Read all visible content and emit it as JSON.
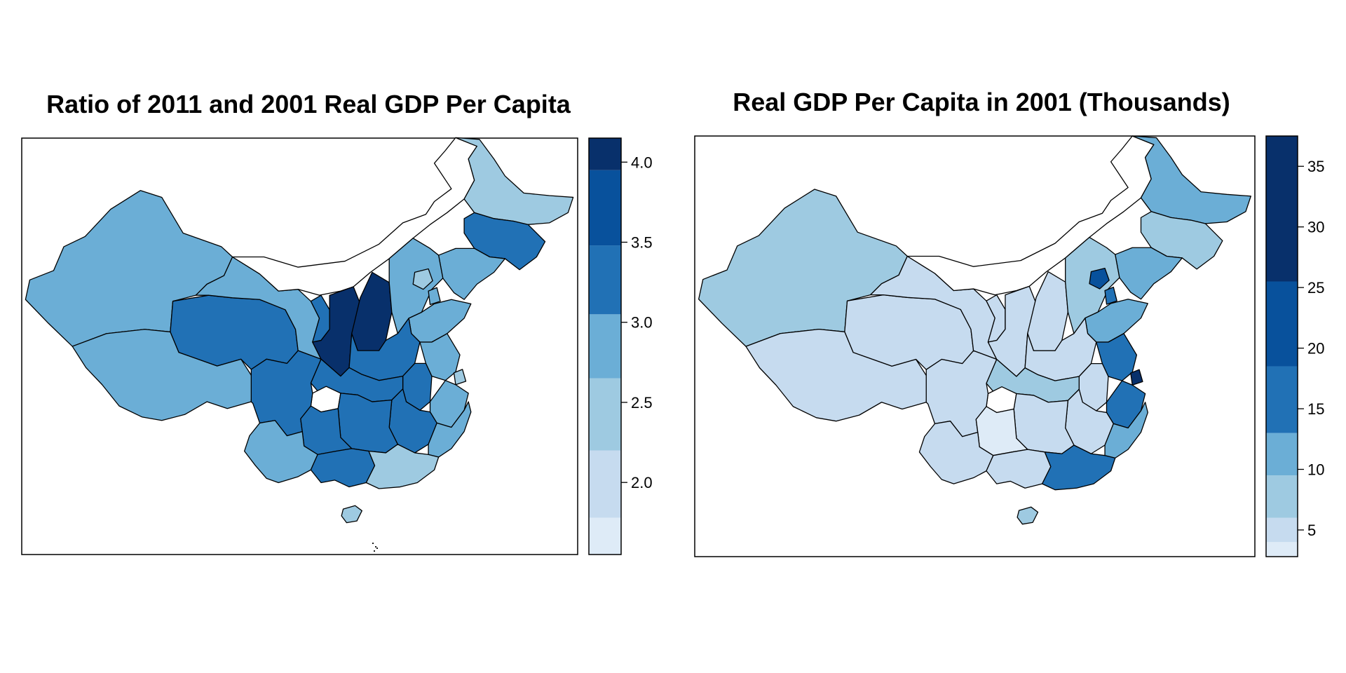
{
  "maps": [
    {
      "title": "Ratio of 2011 and 2001 Real GDP Per Capita",
      "legend": {
        "ticks": [
          "2.0",
          "2.5",
          "3.0",
          "3.5",
          "4.0"
        ],
        "tick_values": [
          2.0,
          2.5,
          3.0,
          3.5,
          4.0
        ],
        "min": 1.55,
        "max": 4.15,
        "bins": [
          {
            "from": 1.55,
            "to": 1.78,
            "color": "#deebf7"
          },
          {
            "from": 1.78,
            "to": 2.2,
            "color": "#c6dbef"
          },
          {
            "from": 2.2,
            "to": 2.65,
            "color": "#9ecae1"
          },
          {
            "from": 2.65,
            "to": 3.05,
            "color": "#6baed6"
          },
          {
            "from": 3.05,
            "to": 3.48,
            "color": "#2171b5"
          },
          {
            "from": 3.48,
            "to": 3.95,
            "color": "#08519c"
          },
          {
            "from": 3.95,
            "to": 4.15,
            "color": "#08306b"
          }
        ]
      }
    },
    {
      "title": "Real GDP Per Capita in 2001 (Thousands)",
      "legend": {
        "ticks": [
          "5",
          "10",
          "15",
          "20",
          "25",
          "30",
          "35"
        ],
        "tick_values": [
          5,
          10,
          15,
          20,
          25,
          30,
          35
        ],
        "min": 2.8,
        "max": 37.5,
        "bins": [
          {
            "from": 2.8,
            "to": 4.0,
            "color": "#deebf7"
          },
          {
            "from": 4.0,
            "to": 6.0,
            "color": "#c6dbef"
          },
          {
            "from": 6.0,
            "to": 9.5,
            "color": "#9ecae1"
          },
          {
            "from": 9.5,
            "to": 13.0,
            "color": "#6baed6"
          },
          {
            "from": 13.0,
            "to": 18.5,
            "color": "#2171b5"
          },
          {
            "from": 18.5,
            "to": 25.5,
            "color": "#08519c"
          },
          {
            "from": 25.5,
            "to": 37.5,
            "color": "#08306b"
          }
        ]
      }
    }
  ]
}
